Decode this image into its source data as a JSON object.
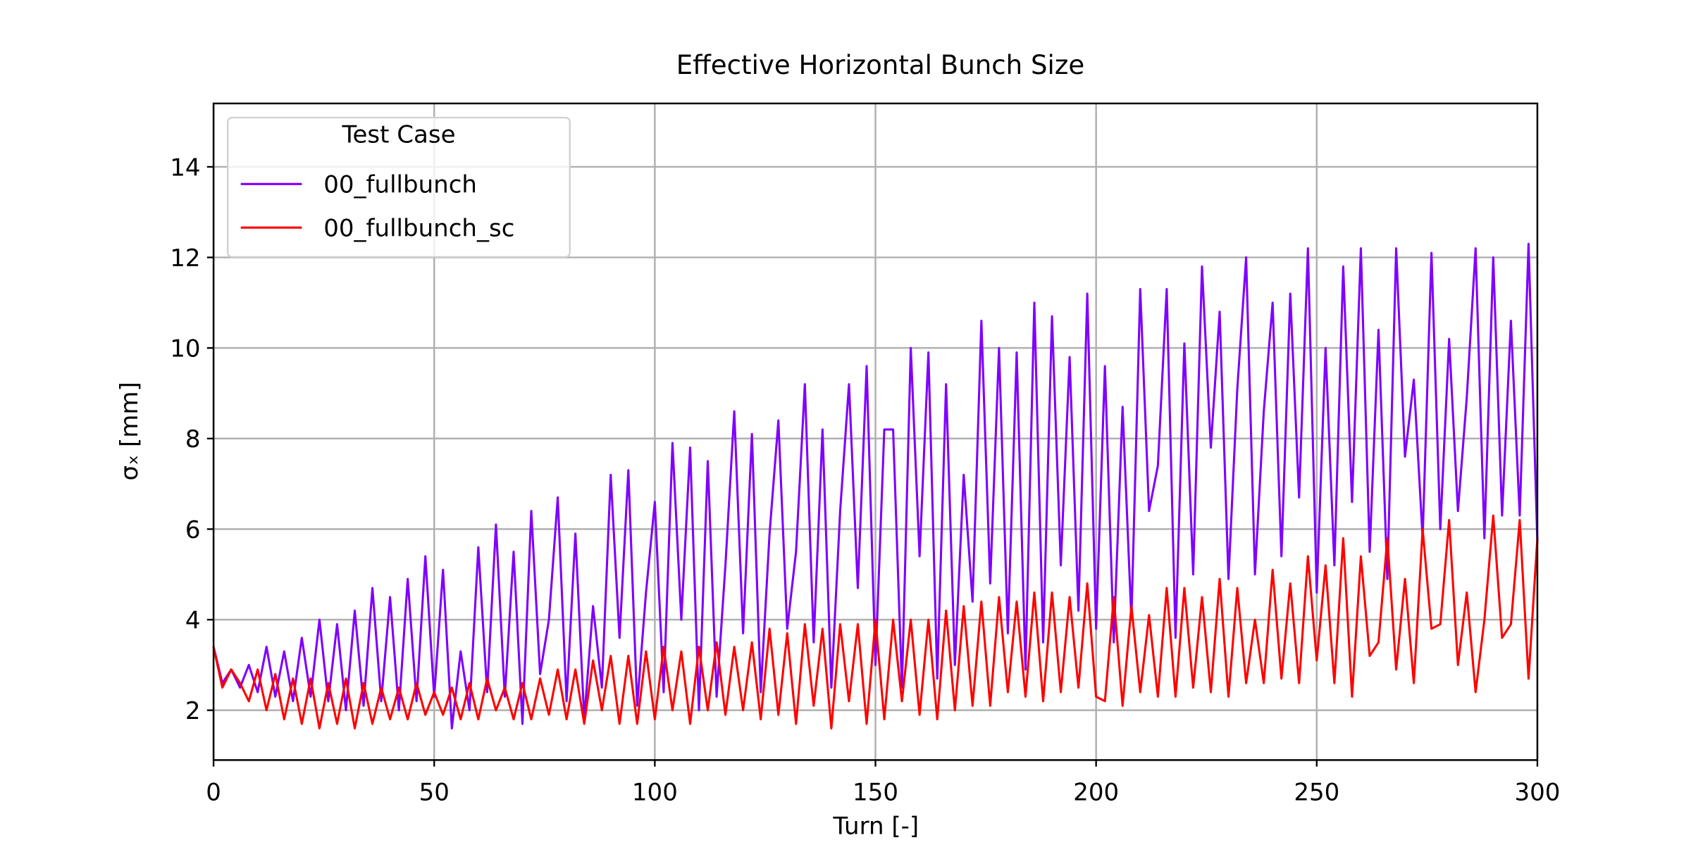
{
  "chart_data": {
    "type": "line",
    "title": "Effective Horizontal Bunch Size",
    "x_label": "Turn [-]",
    "y_label": "σₓ [mm]",
    "legend_title": "Test Case",
    "legend": "upper left",
    "grid": true,
    "xlim": [
      0,
      300
    ],
    "ylim": [
      0.9,
      15.4
    ],
    "xticks": [
      0,
      50,
      100,
      150,
      200,
      250,
      300
    ],
    "yticks": [
      2,
      4,
      6,
      8,
      10,
      12,
      14
    ],
    "x": [
      0,
      2,
      4,
      6,
      8,
      10,
      12,
      14,
      16,
      18,
      20,
      22,
      24,
      26,
      28,
      30,
      32,
      34,
      36,
      38,
      40,
      42,
      44,
      46,
      48,
      50,
      52,
      54,
      56,
      58,
      60,
      62,
      64,
      66,
      68,
      70,
      72,
      74,
      76,
      78,
      80,
      82,
      84,
      86,
      88,
      90,
      92,
      94,
      96,
      98,
      100,
      102,
      104,
      106,
      108,
      110,
      112,
      114,
      116,
      118,
      120,
      122,
      124,
      126,
      128,
      130,
      132,
      134,
      136,
      138,
      140,
      142,
      144,
      146,
      148,
      150,
      152,
      154,
      156,
      158,
      160,
      162,
      164,
      166,
      168,
      170,
      172,
      174,
      176,
      178,
      180,
      182,
      184,
      186,
      188,
      190,
      192,
      194,
      196,
      198,
      200,
      202,
      204,
      206,
      208,
      210,
      212,
      214,
      216,
      218,
      220,
      222,
      224,
      226,
      228,
      230,
      232,
      234,
      236,
      238,
      240,
      242,
      244,
      246,
      248,
      250,
      252,
      254,
      256,
      258,
      260,
      262,
      264,
      266,
      268,
      270,
      272,
      274,
      276,
      278,
      280,
      282,
      284,
      286,
      288,
      290,
      292,
      294,
      296,
      298,
      300
    ],
    "series": [
      {
        "name": "00_fullbunch",
        "color": "#7f00ff",
        "values": [
          3.4,
          2.6,
          2.9,
          2.5,
          3.0,
          2.4,
          3.4,
          2.3,
          3.3,
          2.2,
          3.6,
          2.3,
          4.0,
          2.2,
          3.9,
          2.0,
          4.2,
          2.1,
          4.7,
          2.2,
          4.5,
          2.0,
          4.9,
          2.2,
          5.4,
          2.3,
          5.1,
          1.6,
          3.3,
          2.0,
          5.6,
          2.4,
          6.1,
          2.3,
          5.5,
          1.7,
          6.4,
          2.8,
          4.0,
          6.7,
          2.2,
          5.9,
          1.8,
          4.3,
          2.5,
          7.2,
          3.6,
          7.3,
          2.1,
          4.6,
          6.6,
          2.4,
          7.9,
          4.0,
          7.8,
          2.0,
          7.5,
          2.3,
          5.2,
          8.6,
          3.7,
          8.1,
          2.4,
          5.9,
          8.4,
          3.8,
          5.5,
          9.2,
          3.5,
          8.2,
          2.5,
          6.4,
          9.2,
          4.7,
          9.6,
          3.0,
          8.2,
          8.2,
          2.5,
          10.0,
          5.4,
          9.9,
          2.7,
          9.2,
          3.0,
          7.2,
          4.4,
          10.6,
          4.8,
          10.0,
          3.7,
          9.9,
          2.9,
          11.0,
          3.5,
          10.7,
          5.2,
          9.8,
          4.2,
          11.2,
          3.8,
          9.6,
          3.5,
          8.7,
          4.0,
          11.3,
          6.4,
          7.4,
          11.3,
          3.6,
          10.1,
          5.0,
          11.8,
          7.8,
          10.8,
          4.9,
          9.1,
          12.0,
          5.0,
          8.6,
          11.0,
          5.4,
          11.2,
          6.7,
          12.2,
          4.6,
          10.0,
          5.2,
          11.8,
          6.6,
          12.2,
          5.5,
          10.4,
          4.9,
          12.2,
          7.6,
          9.3,
          5.8,
          12.1,
          6.0,
          10.2,
          6.4,
          8.9,
          12.2,
          5.8,
          12.0,
          6.3,
          10.6,
          6.3,
          12.3,
          5.7
        ]
      },
      {
        "name": "00_fullbunch_sc",
        "color": "#ff0000",
        "values": [
          3.4,
          2.5,
          2.9,
          2.6,
          2.2,
          2.9,
          2.0,
          2.8,
          1.8,
          2.7,
          1.7,
          2.7,
          1.6,
          2.6,
          1.7,
          2.7,
          1.6,
          2.6,
          1.7,
          2.5,
          1.8,
          2.5,
          1.8,
          2.6,
          1.9,
          2.4,
          1.9,
          2.5,
          1.8,
          2.6,
          1.8,
          2.7,
          2.0,
          2.5,
          1.8,
          2.6,
          1.8,
          2.7,
          1.9,
          2.9,
          1.8,
          2.9,
          1.7,
          3.1,
          2.0,
          3.2,
          1.7,
          3.2,
          1.7,
          3.3,
          1.8,
          3.4,
          2.0,
          3.3,
          1.7,
          3.4,
          2.0,
          3.5,
          1.9,
          3.4,
          2.0,
          3.5,
          1.8,
          3.8,
          1.9,
          3.7,
          1.7,
          3.9,
          2.1,
          3.8,
          1.6,
          3.9,
          2.2,
          3.9,
          1.7,
          4.0,
          1.8,
          4.0,
          2.2,
          4.0,
          1.9,
          4.0,
          1.8,
          4.2,
          2.0,
          4.3,
          2.1,
          4.4,
          2.1,
          4.5,
          2.4,
          4.4,
          2.3,
          4.6,
          2.2,
          4.6,
          2.4,
          4.5,
          2.5,
          4.8,
          2.3,
          2.2,
          4.5,
          2.1,
          4.3,
          2.4,
          4.1,
          2.3,
          4.7,
          2.3,
          4.7,
          2.5,
          4.5,
          2.4,
          4.9,
          2.3,
          4.7,
          2.6,
          4.0,
          2.6,
          5.1,
          2.7,
          4.8,
          2.6,
          5.4,
          3.1,
          5.2,
          2.6,
          5.8,
          2.3,
          5.4,
          3.2,
          3.5,
          5.8,
          2.9,
          4.9,
          2.6,
          6.0,
          3.8,
          3.9,
          6.2,
          3.0,
          4.6,
          2.4,
          4.0,
          6.3,
          3.6,
          3.9,
          6.2,
          2.7,
          5.8
        ]
      }
    ]
  }
}
